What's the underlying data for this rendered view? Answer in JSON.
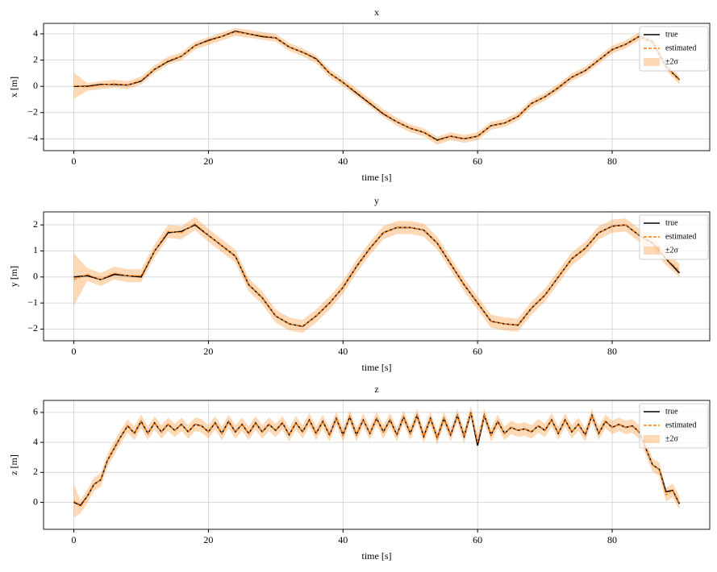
{
  "chart_data": [
    {
      "type": "line",
      "title": "x",
      "xlabel": "time [s]",
      "ylabel": "x [m]",
      "grid": true,
      "legend": "upper right",
      "xlim": [
        -4.5,
        94.5
      ],
      "xticks": [
        0,
        20,
        40,
        60,
        80
      ],
      "ylim": [
        -4.9,
        4.8
      ],
      "yticks": [
        {
          "value": -4,
          "label": "−4"
        },
        {
          "value": -2,
          "label": "−2"
        },
        0,
        2,
        4
      ],
      "x": [
        0,
        2,
        4,
        6,
        8,
        10,
        12,
        14,
        16,
        18,
        20,
        22,
        24,
        26,
        28,
        30,
        32,
        34,
        36,
        38,
        40,
        42,
        44,
        46,
        48,
        50,
        52,
        54,
        56,
        58,
        60,
        62,
        64,
        66,
        68,
        70,
        72,
        74,
        76,
        78,
        80,
        82,
        84,
        86,
        88,
        90
      ],
      "band": {
        "name": "±2σ",
        "color": "#ff7f0e",
        "lower": [
          -0.95,
          -0.35,
          -0.2,
          -0.1,
          -0.2,
          0.15,
          1.0,
          1.65,
          2.0,
          2.8,
          3.15,
          3.5,
          3.85,
          3.7,
          3.55,
          3.4,
          2.7,
          2.3,
          1.75,
          0.7,
          0.0,
          -0.75,
          -1.55,
          -2.35,
          -3.0,
          -3.5,
          -3.8,
          -4.45,
          -4.1,
          -4.3,
          -4.1,
          -3.3,
          -3.1,
          -2.6,
          -1.6,
          -1.1,
          -0.4,
          0.4,
          0.9,
          1.7,
          2.5,
          2.9,
          3.5,
          3.1,
          1.2,
          0.15
        ],
        "upper": [
          1.05,
          0.25,
          0.4,
          0.5,
          0.4,
          0.75,
          1.6,
          2.25,
          2.6,
          3.4,
          3.75,
          4.1,
          4.45,
          4.3,
          4.15,
          4.0,
          3.3,
          2.9,
          2.35,
          1.3,
          0.6,
          -0.15,
          -0.95,
          -1.75,
          -2.4,
          -2.9,
          -3.2,
          -3.85,
          -3.5,
          -3.7,
          -3.5,
          -2.7,
          -2.5,
          -2.0,
          -1.0,
          -0.5,
          0.2,
          1.0,
          1.5,
          2.3,
          3.1,
          3.5,
          4.1,
          3.7,
          1.8,
          0.75
        ]
      },
      "series": [
        {
          "name": "true",
          "color": "#000000",
          "dashed": false,
          "values": [
            0,
            0,
            0.15,
            0.15,
            0.1,
            0.4,
            1.3,
            1.9,
            2.3,
            3.1,
            3.5,
            3.8,
            4.2,
            4.0,
            3.8,
            3.7,
            3.0,
            2.6,
            2.1,
            1.0,
            0.3,
            -0.5,
            -1.3,
            -2.1,
            -2.7,
            -3.2,
            -3.5,
            -4.1,
            -3.8,
            -4.0,
            -3.8,
            -3.0,
            -2.8,
            -2.3,
            -1.3,
            -0.8,
            -0.1,
            0.7,
            1.2,
            2.0,
            2.8,
            3.2,
            3.8,
            3.4,
            1.5,
            0.5
          ]
        },
        {
          "name": "estimated",
          "color": "#ff7f0e",
          "dashed": true,
          "values": [
            0.05,
            -0.05,
            0.1,
            0.2,
            0.1,
            0.45,
            1.3,
            1.95,
            2.3,
            3.1,
            3.45,
            3.8,
            4.15,
            4.0,
            3.85,
            3.7,
            3.0,
            2.6,
            2.05,
            1.0,
            0.3,
            -0.45,
            -1.25,
            -2.05,
            -2.7,
            -3.2,
            -3.5,
            -4.15,
            -3.8,
            -4.0,
            -3.8,
            -3.0,
            -2.8,
            -2.3,
            -1.3,
            -0.8,
            -0.1,
            0.7,
            1.2,
            2.0,
            2.8,
            3.2,
            3.8,
            3.4,
            1.5,
            0.45
          ]
        }
      ]
    },
    {
      "type": "line",
      "title": "y",
      "xlabel": "time [s]",
      "ylabel": "y [m]",
      "grid": true,
      "legend": "upper right",
      "xlim": [
        -4.5,
        94.5
      ],
      "xticks": [
        0,
        20,
        40,
        60,
        80
      ],
      "ylim": [
        -2.45,
        2.5
      ],
      "yticks": [
        {
          "value": -2,
          "label": "−2"
        },
        {
          "value": -1,
          "label": "−1"
        },
        0,
        1,
        2
      ],
      "x": [
        0,
        2,
        4,
        6,
        8,
        10,
        12,
        14,
        16,
        18,
        20,
        22,
        24,
        26,
        28,
        30,
        32,
        34,
        36,
        38,
        40,
        42,
        44,
        46,
        48,
        50,
        52,
        54,
        56,
        58,
        60,
        62,
        64,
        66,
        68,
        70,
        72,
        74,
        76,
        78,
        80,
        82,
        84,
        86,
        88,
        90
      ],
      "band": {
        "name": "±2σ",
        "color": "#ff7f0e",
        "lower": [
          -1.1,
          -0.15,
          -0.35,
          -0.1,
          -0.2,
          -0.2,
          0.75,
          1.5,
          1.45,
          1.8,
          1.35,
          0.95,
          0.55,
          -0.55,
          -1.05,
          -1.75,
          -2.05,
          -2.15,
          -1.75,
          -1.25,
          -0.65,
          0.15,
          0.85,
          1.45,
          1.65,
          1.65,
          1.55,
          1.05,
          0.25,
          -0.55,
          -1.25,
          -1.95,
          -2.05,
          -2.1,
          -1.45,
          -0.95,
          -0.25,
          0.45,
          0.85,
          1.45,
          1.7,
          1.75,
          1.35,
          1.05,
          0.45,
          0.0
        ],
        "upper": [
          0.9,
          0.35,
          0.15,
          0.4,
          0.3,
          0.3,
          1.25,
          2.0,
          1.95,
          2.3,
          1.85,
          1.45,
          1.05,
          -0.05,
          -0.55,
          -1.25,
          -1.55,
          -1.65,
          -1.25,
          -0.75,
          -0.15,
          0.65,
          1.35,
          1.95,
          2.15,
          2.15,
          2.05,
          1.55,
          0.75,
          -0.05,
          -0.75,
          -1.45,
          -1.55,
          -1.6,
          -0.95,
          -0.45,
          0.25,
          0.95,
          1.35,
          1.95,
          2.2,
          2.25,
          1.85,
          1.55,
          0.95,
          0.5
        ]
      },
      "series": [
        {
          "name": "true",
          "color": "#000000",
          "dashed": false,
          "values": [
            0,
            0.05,
            -0.1,
            0.1,
            0.05,
            0,
            1.0,
            1.7,
            1.75,
            2.0,
            1.6,
            1.2,
            0.8,
            -0.3,
            -0.8,
            -1.5,
            -1.8,
            -1.9,
            -1.5,
            -1.0,
            -0.4,
            0.4,
            1.1,
            1.7,
            1.9,
            1.9,
            1.8,
            1.3,
            0.5,
            -0.3,
            -1.0,
            -1.7,
            -1.8,
            -1.85,
            -1.2,
            -0.7,
            0.0,
            0.7,
            1.1,
            1.7,
            1.95,
            2.0,
            1.6,
            1.3,
            0.7,
            0.15
          ]
        },
        {
          "name": "estimated",
          "color": "#ff7f0e",
          "dashed": true,
          "values": [
            -0.1,
            0.1,
            -0.1,
            0.15,
            0.05,
            0.05,
            1.0,
            1.75,
            1.7,
            2.05,
            1.6,
            1.2,
            0.8,
            -0.3,
            -0.8,
            -1.5,
            -1.8,
            -1.9,
            -1.5,
            -1.0,
            -0.4,
            0.4,
            1.1,
            1.7,
            1.9,
            1.9,
            1.8,
            1.3,
            0.5,
            -0.3,
            -1.0,
            -1.7,
            -1.8,
            -1.85,
            -1.2,
            -0.7,
            0.0,
            0.7,
            1.1,
            1.7,
            1.95,
            2.0,
            1.6,
            1.3,
            0.7,
            0.25
          ]
        }
      ]
    },
    {
      "type": "line",
      "title": "z",
      "xlabel": "time [s]",
      "ylabel": "z [m]",
      "grid": true,
      "legend": "upper right",
      "xlim": [
        -4.5,
        94.5
      ],
      "xticks": [
        0,
        20,
        40,
        60,
        80
      ],
      "ylim": [
        -1.8,
        6.8
      ],
      "yticks": [
        0,
        2,
        4,
        6
      ],
      "x": [
        0,
        1,
        2,
        3,
        4,
        5,
        6,
        7,
        8,
        9,
        10,
        11,
        12,
        13,
        14,
        15,
        16,
        17,
        18,
        19,
        20,
        21,
        22,
        23,
        24,
        25,
        26,
        27,
        28,
        29,
        30,
        31,
        32,
        33,
        34,
        35,
        36,
        37,
        38,
        39,
        40,
        41,
        42,
        43,
        44,
        45,
        46,
        47,
        48,
        49,
        50,
        51,
        52,
        53,
        54,
        55,
        56,
        57,
        58,
        59,
        60,
        61,
        62,
        63,
        64,
        65,
        66,
        67,
        68,
        69,
        70,
        71,
        72,
        73,
        74,
        75,
        76,
        77,
        78,
        79,
        80,
        81,
        82,
        83,
        84,
        85,
        86,
        87,
        88,
        89,
        90
      ],
      "band": {
        "name": "±2σ",
        "color": "#ff7f0e",
        "lower": [
          -1.0,
          -0.75,
          -0.05,
          0.75,
          1.05,
          2.35,
          3.15,
          3.95,
          4.65,
          4.15,
          4.95,
          4.15,
          4.85,
          4.25,
          4.75,
          4.35,
          4.75,
          4.25,
          4.75,
          4.65,
          4.25,
          4.85,
          4.15,
          4.95,
          4.25,
          4.75,
          4.15,
          4.85,
          4.25,
          4.75,
          4.35,
          4.85,
          4.05,
          4.85,
          4.25,
          5.05,
          4.15,
          4.95,
          4.05,
          5.15,
          4.05,
          5.25,
          4.05,
          5.05,
          4.15,
          5.15,
          4.25,
          5.05,
          4.05,
          5.25,
          4.15,
          5.35,
          3.95,
          5.15,
          3.85,
          5.15,
          4.05,
          5.35,
          3.95,
          5.55,
          3.55,
          5.35,
          4.05,
          4.95,
          4.15,
          4.55,
          4.35,
          4.45,
          4.25,
          4.65,
          4.35,
          5.05,
          4.15,
          5.05,
          4.25,
          4.75,
          4.05,
          5.35,
          4.15,
          4.95,
          4.55,
          4.75,
          4.55,
          4.65,
          4.25,
          3.15,
          2.05,
          1.75,
          0.05,
          0.35,
          -0.5
        ],
        "upper": [
          1.2,
          0.15,
          0.85,
          1.65,
          1.95,
          3.25,
          4.05,
          4.85,
          5.55,
          5.05,
          5.85,
          5.05,
          5.75,
          5.15,
          5.65,
          5.25,
          5.65,
          5.15,
          5.65,
          5.55,
          5.15,
          5.75,
          5.05,
          5.85,
          5.15,
          5.65,
          5.05,
          5.75,
          5.15,
          5.65,
          5.25,
          5.75,
          4.95,
          5.75,
          5.15,
          5.95,
          5.05,
          5.85,
          4.95,
          6.05,
          4.95,
          6.15,
          4.95,
          5.95,
          5.05,
          6.05,
          5.15,
          5.95,
          4.95,
          6.15,
          5.05,
          6.25,
          4.85,
          6.05,
          4.75,
          6.05,
          4.95,
          6.25,
          4.85,
          6.45,
          4.45,
          6.25,
          4.95,
          5.85,
          5.05,
          5.45,
          5.25,
          5.35,
          5.15,
          5.55,
          5.25,
          5.95,
          5.05,
          5.95,
          5.15,
          5.65,
          4.95,
          6.25,
          5.05,
          5.85,
          5.45,
          5.65,
          5.45,
          5.55,
          5.15,
          4.05,
          2.95,
          2.65,
          0.95,
          1.25,
          0.4
        ]
      },
      "series": [
        {
          "name": "true",
          "color": "#000000",
          "dashed": false,
          "values": [
            0,
            -0.2,
            0.4,
            1.2,
            1.5,
            2.8,
            3.6,
            4.4,
            5.1,
            4.6,
            5.4,
            4.6,
            5.3,
            4.7,
            5.2,
            4.8,
            5.2,
            4.7,
            5.2,
            5.1,
            4.7,
            5.3,
            4.6,
            5.4,
            4.7,
            5.2,
            4.6,
            5.3,
            4.7,
            5.2,
            4.8,
            5.3,
            4.5,
            5.3,
            4.7,
            5.5,
            4.6,
            5.4,
            4.5,
            5.6,
            4.5,
            5.7,
            4.5,
            5.5,
            4.6,
            5.6,
            4.7,
            5.5,
            4.5,
            5.7,
            4.6,
            5.8,
            4.4,
            5.6,
            4.3,
            5.6,
            4.5,
            5.8,
            4.4,
            6.0,
            3.8,
            5.8,
            4.5,
            5.4,
            4.6,
            5.0,
            4.8,
            4.9,
            4.7,
            5.1,
            4.8,
            5.5,
            4.6,
            5.5,
            4.7,
            5.2,
            4.5,
            5.8,
            4.6,
            5.4,
            5.0,
            5.2,
            5.0,
            5.1,
            4.7,
            3.6,
            2.5,
            2.2,
            0.7,
            0.8,
            -0.1
          ]
        },
        {
          "name": "estimated",
          "color": "#ff7f0e",
          "dashed": true,
          "values": [
            0.1,
            -0.3,
            0.4,
            1.2,
            1.5,
            2.8,
            3.6,
            4.4,
            5.1,
            4.6,
            5.4,
            4.6,
            5.3,
            4.7,
            5.2,
            4.8,
            5.2,
            4.7,
            5.2,
            5.1,
            4.7,
            5.3,
            4.6,
            5.4,
            4.7,
            5.2,
            4.6,
            5.3,
            4.7,
            5.2,
            4.8,
            5.3,
            4.5,
            5.3,
            4.7,
            5.5,
            4.6,
            5.4,
            4.5,
            5.6,
            4.5,
            5.7,
            4.5,
            5.5,
            4.6,
            5.6,
            4.7,
            5.5,
            4.5,
            5.7,
            4.6,
            5.8,
            4.4,
            5.6,
            4.3,
            5.6,
            4.5,
            5.8,
            4.4,
            6.0,
            4.0,
            5.8,
            4.5,
            5.4,
            4.6,
            5.0,
            4.8,
            4.9,
            4.7,
            5.1,
            4.8,
            5.5,
            4.6,
            5.5,
            4.7,
            5.2,
            4.5,
            5.8,
            4.6,
            5.4,
            5.0,
            5.2,
            5.0,
            5.1,
            4.7,
            3.6,
            2.5,
            2.2,
            0.5,
            0.8,
            -0.05
          ]
        }
      ]
    }
  ]
}
